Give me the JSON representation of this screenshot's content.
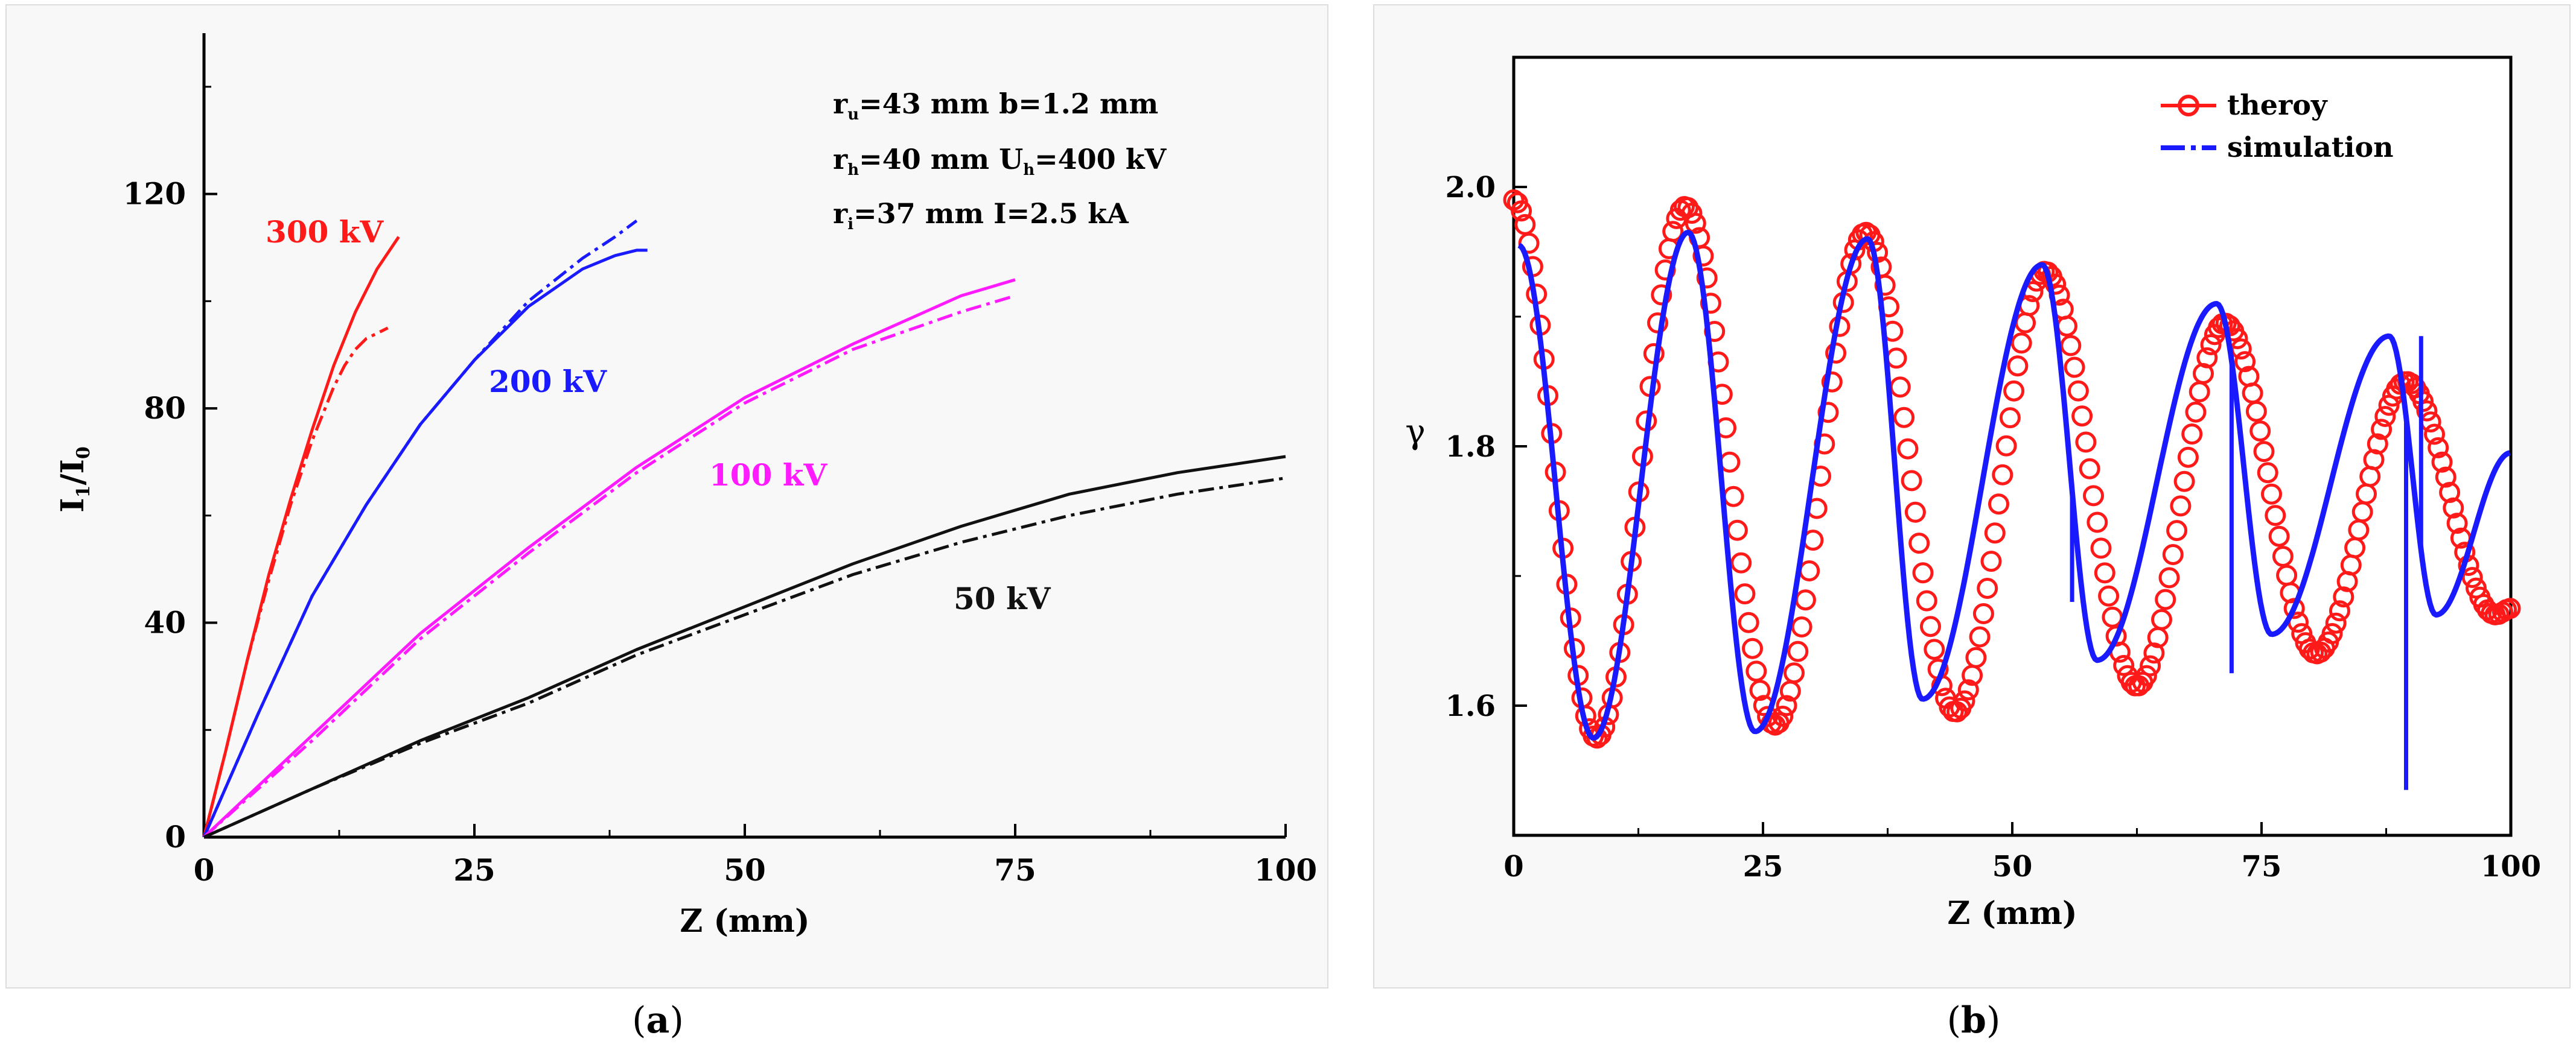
{
  "chart_data": [
    {
      "type": "line",
      "panel_label": "(a)",
      "panel_letter": "a",
      "xlabel": "Z (mm)",
      "ylabel_main": "I",
      "ylabel_sub1": "1",
      "ylabel_slash": "/I",
      "ylabel_sub2": "0",
      "xlim": [
        0,
        100
      ],
      "ylim": [
        0,
        150
      ],
      "xticks": [
        0,
        25,
        50,
        75,
        100
      ],
      "yticks": [
        0,
        40,
        80,
        120
      ],
      "xticklabels": [
        "0",
        "25",
        "50",
        "75",
        "100"
      ],
      "yticklabels": [
        "0",
        "40",
        "80",
        "120"
      ],
      "annotations": [
        {
          "main": "r",
          "sub": "u",
          "rest": "=43 mm   b=1.2 mm"
        },
        {
          "main": "r",
          "sub": "h",
          "rest": "=40 mm  U",
          "sub2": "h",
          "rest2": "=400 kV"
        },
        {
          "main": "r",
          "sub": "i",
          "rest": "=37 mm   I=2.5 kA"
        }
      ],
      "series": [
        {
          "name": "300 kV",
          "color": "#ff1a1a",
          "style": "solid",
          "x": [
            0,
            2,
            4,
            6,
            8,
            10,
            12,
            14,
            16,
            18
          ],
          "y": [
            0,
            16,
            33,
            49,
            63,
            76,
            88,
            98,
            106,
            112
          ]
        },
        {
          "name": "300 kV",
          "color": "#ff1a1a",
          "style": "dashdot",
          "x": [
            0,
            2,
            4,
            6,
            8,
            10,
            12,
            13,
            14,
            15,
            16,
            17
          ],
          "y": [
            0,
            16,
            33,
            48,
            62,
            74,
            84,
            88,
            91,
            93,
            94,
            95
          ]
        },
        {
          "name": "200 kV",
          "color": "#1a1aff",
          "style": "solid",
          "x": [
            0,
            5,
            10,
            15,
            20,
            25,
            30,
            35,
            38,
            40,
            41
          ],
          "y": [
            0,
            23,
            45,
            62,
            77,
            89,
            99,
            106,
            108.5,
            109.5,
            109.5
          ]
        },
        {
          "name": "200 kV",
          "color": "#1a1aff",
          "style": "dashdot",
          "x": [
            0,
            5,
            10,
            15,
            20,
            25,
            30,
            35,
            38,
            40
          ],
          "y": [
            0,
            23,
            45,
            62,
            77,
            89,
            100,
            108,
            112,
            115
          ]
        },
        {
          "name": "100 kV",
          "color": "#ff1aff",
          "style": "solid",
          "x": [
            0,
            10,
            20,
            30,
            40,
            50,
            60,
            70,
            75
          ],
          "y": [
            0,
            19,
            38,
            54,
            69,
            82,
            92,
            101,
            104
          ]
        },
        {
          "name": "100 kV",
          "color": "#ff1aff",
          "style": "dashdot",
          "x": [
            0,
            10,
            20,
            30,
            40,
            50,
            60,
            70,
            75
          ],
          "y": [
            0,
            18,
            37,
            53,
            68,
            81,
            91,
            98,
            101
          ]
        },
        {
          "name": "50 kV",
          "color": "#111111",
          "style": "solid",
          "x": [
            0,
            10,
            20,
            30,
            40,
            50,
            60,
            70,
            80,
            90,
            100
          ],
          "y": [
            0,
            9,
            18,
            26,
            35,
            43,
            51,
            58,
            64,
            68,
            71
          ]
        },
        {
          "name": "50 kV",
          "color": "#111111",
          "style": "dashdot",
          "x": [
            0,
            10,
            20,
            30,
            40,
            50,
            60,
            70,
            80,
            90,
            100
          ],
          "y": [
            0,
            9,
            17.5,
            25,
            34,
            41.5,
            49,
            55,
            60,
            64,
            67
          ]
        }
      ],
      "labels": [
        {
          "text": "300 kV",
          "color": "#ff1a1a"
        },
        {
          "text": "200 kV",
          "color": "#1a1aff"
        },
        {
          "text": "100 kV",
          "color": "#ff1aff"
        },
        {
          "text": "50 kV",
          "color": "#111111"
        }
      ]
    },
    {
      "type": "line",
      "panel_label": "(b)",
      "panel_letter": "b",
      "xlabel": "Z (mm)",
      "ylabel": "γ",
      "xlim": [
        0,
        100
      ],
      "ylim": [
        1.5,
        2.1
      ],
      "xticks": [
        0,
        25,
        50,
        75,
        100
      ],
      "yticks": [
        1.6,
        1.8,
        2.0
      ],
      "xticklabels": [
        "0",
        "25",
        "50",
        "75",
        "100"
      ],
      "yticklabels": [
        "1.6",
        "1.8",
        "2.0"
      ],
      "legend_position": "top-right",
      "series": [
        {
          "name": "theroy",
          "color": "#ff1a1a",
          "style": "circles",
          "extrema": [
            [
              0,
              1.99
            ],
            [
              8.3,
              1.575
            ],
            [
              17.2,
              1.985
            ],
            [
              26.2,
              1.585
            ],
            [
              35.3,
              1.965
            ],
            [
              44.3,
              1.595
            ],
            [
              53.3,
              1.935
            ],
            [
              62.5,
              1.615
            ],
            [
              71.3,
              1.895
            ],
            [
              80.5,
              1.64
            ],
            [
              89.5,
              1.85
            ],
            [
              98.5,
              1.67
            ],
            [
              100,
              1.675
            ]
          ]
        },
        {
          "name": "simulation",
          "color": "#1a1aff",
          "style": "dashdot",
          "extrema": [
            [
              0.5,
              1.955
            ],
            [
              8,
              1.575
            ],
            [
              17.5,
              1.965
            ],
            [
              24.2,
              1.58
            ],
            [
              35.5,
              1.96
            ],
            [
              41,
              1.605
            ],
            [
              53,
              1.94
            ],
            [
              58.5,
              1.635
            ],
            [
              70.5,
              1.91
            ],
            [
              76,
              1.655
            ],
            [
              87.8,
              1.885
            ],
            [
              92.5,
              1.67
            ],
            [
              100,
              1.795
            ]
          ],
          "spikes": [
            [
              56,
              1.68
            ],
            [
              72,
              1.625
            ],
            [
              89.5,
              1.535
            ],
            [
              91,
              1.885
            ]
          ]
        }
      ]
    }
  ]
}
